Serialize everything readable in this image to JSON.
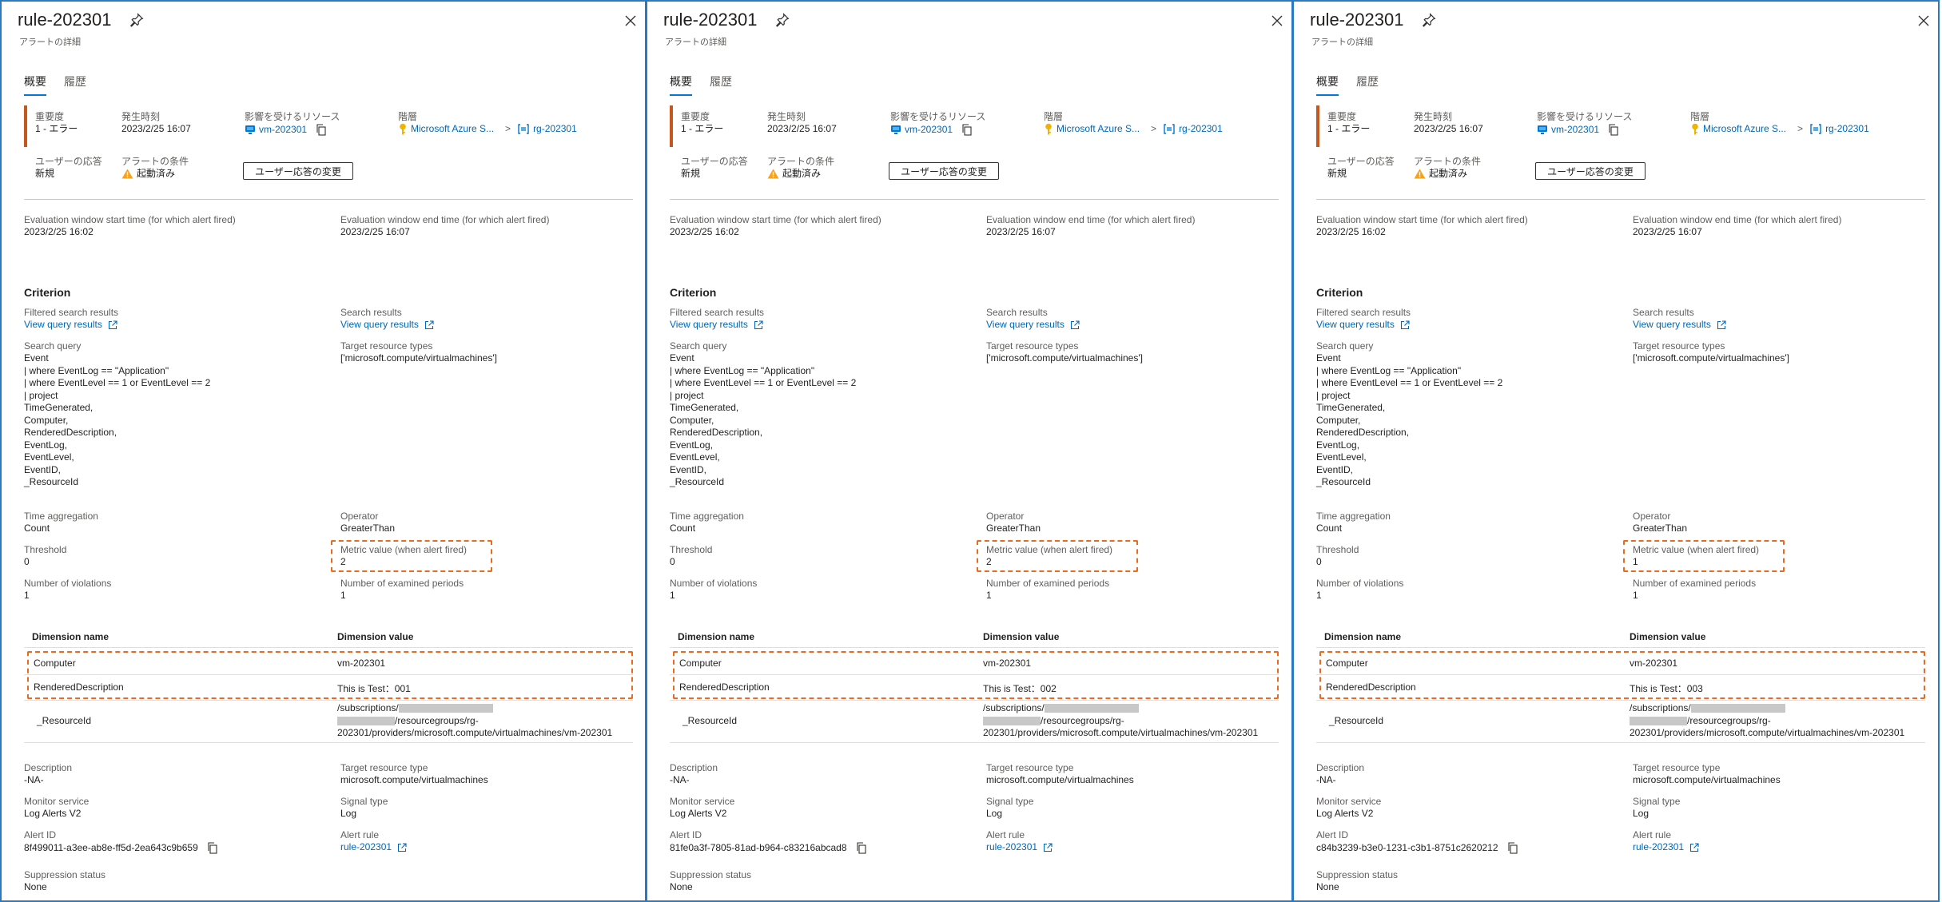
{
  "panels": [
    {
      "title": "rule-202301",
      "subtitle": "アラートの詳細",
      "tabs": [
        "概要",
        "履歴"
      ],
      "severity_label": "重要度",
      "severity_value": "1 - エラー",
      "fired_time_label": "発生時刻",
      "fired_time_value": "2023/2/25 16:07",
      "affected_resource_label": "影響を受けるリソース",
      "affected_resource_value": "vm-202301",
      "hierarchy_label": "階層",
      "hierarchy_subscription": "Microsoft Azure S...",
      "hierarchy_rg": "rg-202301",
      "user_response_label": "ユーザーの応答",
      "user_response_value": "新規",
      "alert_condition_label": "アラートの条件",
      "alert_condition_value": "起動済み",
      "change_response_button": "ユーザー応答の変更",
      "eval_start_label": "Evaluation window start time (for which alert fired)",
      "eval_start_value": "2023/2/25 16:02",
      "eval_end_label": "Evaluation window end time (for which alert fired)",
      "eval_end_value": "2023/2/25 16:07",
      "criterion_title": "Criterion",
      "filtered_results_label": "Filtered search results",
      "filtered_results_link": "View query results",
      "search_results_label": "Search results",
      "search_results_link": "View query results",
      "search_query_label": "Search query",
      "search_query": "Event\n| where EventLog == \"Application\"\n| where EventLevel == 1 or EventLevel == 2\n| project\nTimeGenerated,\nComputer,\nRenderedDescription,\nEventLog,\nEventLevel,\nEventID,\n_ResourceId",
      "target_types_label": "Target resource types",
      "target_types_value": "['microsoft.compute/virtualmachines']",
      "time_agg_label": "Time aggregation",
      "time_agg_value": "Count",
      "operator_label": "Operator",
      "operator_value": "GreaterThan",
      "threshold_label": "Threshold",
      "threshold_value": "0",
      "metric_value_label": "Metric value (when alert fired)",
      "metric_value": "2",
      "violations_label": "Number of violations",
      "violations_value": "1",
      "examined_label": "Number of examined periods",
      "examined_value": "1",
      "dim_name_header": "Dimension name",
      "dim_value_header": "Dimension value",
      "dim_rows": [
        {
          "name": "Computer",
          "value": "vm-202301"
        },
        {
          "name": "RenderedDescription",
          "value": "This is Test：001"
        }
      ],
      "resource_id_name": "_ResourceId",
      "resource_id_line1_prefix": "/subscriptions/",
      "resource_id_line2_suffix": "/resourcegroups/rg-",
      "resource_id_line3": "202301/providers/microsoft.compute/virtualmachines/vm-202301",
      "description_label": "Description",
      "description_value": "-NA-",
      "target_type_label": "Target resource type",
      "target_type_value": "microsoft.compute/virtualmachines",
      "monitor_service_label": "Monitor service",
      "monitor_service_value": "Log Alerts V2",
      "signal_type_label": "Signal type",
      "signal_type_value": "Log",
      "alert_id_label": "Alert ID",
      "alert_id_value": "8f499011-a3ee-ab8e-ff5d-2ea643c9b659",
      "alert_rule_label": "Alert rule",
      "alert_rule_value": "rule-202301",
      "suppression_label": "Suppression status",
      "suppression_value": "None"
    },
    {
      "title": "rule-202301",
      "subtitle": "アラートの詳細",
      "tabs": [
        "概要",
        "履歴"
      ],
      "severity_label": "重要度",
      "severity_value": "1 - エラー",
      "fired_time_label": "発生時刻",
      "fired_time_value": "2023/2/25 16:07",
      "affected_resource_label": "影響を受けるリソース",
      "affected_resource_value": "vm-202301",
      "hierarchy_label": "階層",
      "hierarchy_subscription": "Microsoft Azure S...",
      "hierarchy_rg": "rg-202301",
      "user_response_label": "ユーザーの応答",
      "user_response_value": "新規",
      "alert_condition_label": "アラートの条件",
      "alert_condition_value": "起動済み",
      "change_response_button": "ユーザー応答の変更",
      "eval_start_label": "Evaluation window start time (for which alert fired)",
      "eval_start_value": "2023/2/25 16:02",
      "eval_end_label": "Evaluation window end time (for which alert fired)",
      "eval_end_value": "2023/2/25 16:07",
      "criterion_title": "Criterion",
      "filtered_results_label": "Filtered search results",
      "filtered_results_link": "View query results",
      "search_results_label": "Search results",
      "search_results_link": "View query results",
      "search_query_label": "Search query",
      "search_query": "Event\n| where EventLog == \"Application\"\n| where EventLevel == 1 or EventLevel == 2\n| project\nTimeGenerated,\nComputer,\nRenderedDescription,\nEventLog,\nEventLevel,\nEventID,\n_ResourceId",
      "target_types_label": "Target resource types",
      "target_types_value": "['microsoft.compute/virtualmachines']",
      "time_agg_label": "Time aggregation",
      "time_agg_value": "Count",
      "operator_label": "Operator",
      "operator_value": "GreaterThan",
      "threshold_label": "Threshold",
      "threshold_value": "0",
      "metric_value_label": "Metric value (when alert fired)",
      "metric_value": "2",
      "violations_label": "Number of violations",
      "violations_value": "1",
      "examined_label": "Number of examined periods",
      "examined_value": "1",
      "dim_name_header": "Dimension name",
      "dim_value_header": "Dimension value",
      "dim_rows": [
        {
          "name": "Computer",
          "value": "vm-202301"
        },
        {
          "name": "RenderedDescription",
          "value": "This is Test：002"
        }
      ],
      "resource_id_name": "_ResourceId",
      "resource_id_line1_prefix": "/subscriptions/",
      "resource_id_line2_suffix": "/resourcegroups/rg-",
      "resource_id_line3": "202301/providers/microsoft.compute/virtualmachines/vm-202301",
      "description_label": "Description",
      "description_value": "-NA-",
      "target_type_label": "Target resource type",
      "target_type_value": "microsoft.compute/virtualmachines",
      "monitor_service_label": "Monitor service",
      "monitor_service_value": "Log Alerts V2",
      "signal_type_label": "Signal type",
      "signal_type_value": "Log",
      "alert_id_label": "Alert ID",
      "alert_id_value": "81fe0a3f-7805-81ad-b964-c83216abcad8",
      "alert_rule_label": "Alert rule",
      "alert_rule_value": "rule-202301",
      "suppression_label": "Suppression status",
      "suppression_value": "None"
    },
    {
      "title": "rule-202301",
      "subtitle": "アラートの詳細",
      "tabs": [
        "概要",
        "履歴"
      ],
      "severity_label": "重要度",
      "severity_value": "1 - エラー",
      "fired_time_label": "発生時刻",
      "fired_time_value": "2023/2/25 16:07",
      "affected_resource_label": "影響を受けるリソース",
      "affected_resource_value": "vm-202301",
      "hierarchy_label": "階層",
      "hierarchy_subscription": "Microsoft Azure S...",
      "hierarchy_rg": "rg-202301",
      "user_response_label": "ユーザーの応答",
      "user_response_value": "新規",
      "alert_condition_label": "アラートの条件",
      "alert_condition_value": "起動済み",
      "change_response_button": "ユーザー応答の変更",
      "eval_start_label": "Evaluation window start time (for which alert fired)",
      "eval_start_value": "2023/2/25 16:02",
      "eval_end_label": "Evaluation window end time (for which alert fired)",
      "eval_end_value": "2023/2/25 16:07",
      "criterion_title": "Criterion",
      "filtered_results_label": "Filtered search results",
      "filtered_results_link": "View query results",
      "search_results_label": "Search results",
      "search_results_link": "View query results",
      "search_query_label": "Search query",
      "search_query": "Event\n| where EventLog == \"Application\"\n| where EventLevel == 1 or EventLevel == 2\n| project\nTimeGenerated,\nComputer,\nRenderedDescription,\nEventLog,\nEventLevel,\nEventID,\n_ResourceId",
      "target_types_label": "Target resource types",
      "target_types_value": "['microsoft.compute/virtualmachines']",
      "time_agg_label": "Time aggregation",
      "time_agg_value": "Count",
      "operator_label": "Operator",
      "operator_value": "GreaterThan",
      "threshold_label": "Threshold",
      "threshold_value": "0",
      "metric_value_label": "Metric value (when alert fired)",
      "metric_value": "1",
      "violations_label": "Number of violations",
      "violations_value": "1",
      "examined_label": "Number of examined periods",
      "examined_value": "1",
      "dim_name_header": "Dimension name",
      "dim_value_header": "Dimension value",
      "dim_rows": [
        {
          "name": "Computer",
          "value": "vm-202301"
        },
        {
          "name": "RenderedDescription",
          "value": "This is Test：003"
        }
      ],
      "resource_id_name": "_ResourceId",
      "resource_id_line1_prefix": "/subscriptions/",
      "resource_id_line2_suffix": "/resourcegroups/rg-",
      "resource_id_line3": "202301/providers/microsoft.compute/virtualmachines/vm-202301",
      "description_label": "Description",
      "description_value": "-NA-",
      "target_type_label": "Target resource type",
      "target_type_value": "microsoft.compute/virtualmachines",
      "monitor_service_label": "Monitor service",
      "monitor_service_value": "Log Alerts V2",
      "signal_type_label": "Signal type",
      "signal_type_value": "Log",
      "alert_id_label": "Alert ID",
      "alert_id_value": "c84b3239-b3e0-1231-c3b1-8751c2620212",
      "alert_rule_label": "Alert rule",
      "alert_rule_value": "rule-202301",
      "suppression_label": "Suppression status",
      "suppression_value": "None"
    }
  ],
  "colors": {
    "panel_border": "#2b79c2",
    "link": "#0067b8",
    "severity_bar": "#c4581f",
    "highlight_dash": "#ea6a1f",
    "warning": "#f7a21b"
  },
  "icons": {
    "pin": "pin-icon",
    "close": "close-icon",
    "vm": "virtual-machine-icon",
    "copy": "copy-icon",
    "key": "key-icon",
    "resource_group": "resource-group-icon",
    "warning": "warning-icon",
    "external": "external-link-icon",
    "chevron": "chevron-right-icon"
  }
}
